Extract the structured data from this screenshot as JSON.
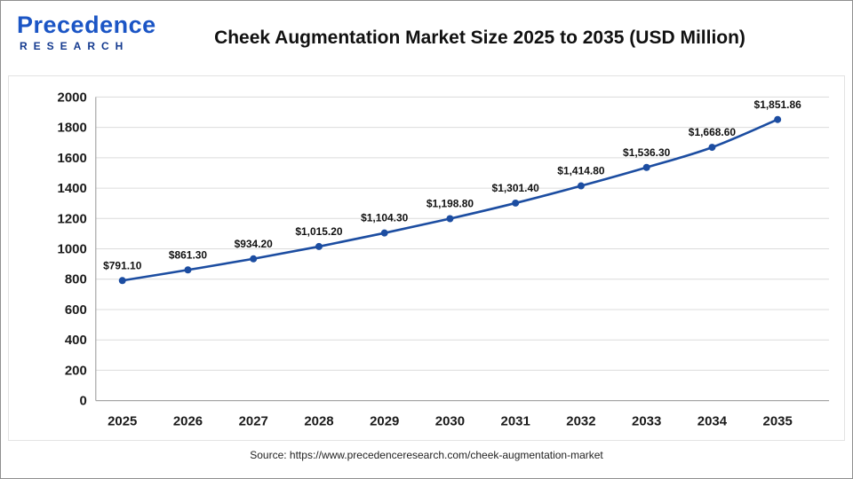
{
  "header": {
    "logo": {
      "wordmark": "Precedence",
      "sub": "RESEARCH"
    },
    "title": "Cheek Augmentation Market Size 2025 to 2035 (USD Million)"
  },
  "footer": {
    "source": "Source: https://www.precedenceresearch.com/cheek-augmentation-market"
  },
  "chart_data": {
    "type": "line",
    "title": "Cheek Augmentation Market Size 2025 to 2035 (USD Million)",
    "categories": [
      "2025",
      "2026",
      "2027",
      "2028",
      "2029",
      "2030",
      "2031",
      "2032",
      "2033",
      "2034",
      "2035"
    ],
    "values": [
      791.1,
      861.3,
      934.2,
      1015.2,
      1104.3,
      1198.8,
      1301.4,
      1414.8,
      1536.3,
      1668.6,
      1851.86
    ],
    "point_labels": [
      "$791.10",
      "$861.30",
      "$934.20",
      "$1,015.20",
      "$1,104.30",
      "$1,198.80",
      "$1,301.40",
      "$1,414.80",
      "$1,536.30",
      "$1,668.60",
      "$1,851.86"
    ],
    "xlabel": "",
    "ylabel": "",
    "ylim": [
      0,
      2000
    ],
    "ytick_step": 200,
    "grid": true,
    "legend": "none",
    "colors": {
      "line": "#1c4da1",
      "marker": "#1c4da1",
      "grid": "#dcdcdc",
      "axis": "#a6a6a6",
      "tick_text": "#1a1a1a",
      "label_text": "#111111"
    }
  }
}
